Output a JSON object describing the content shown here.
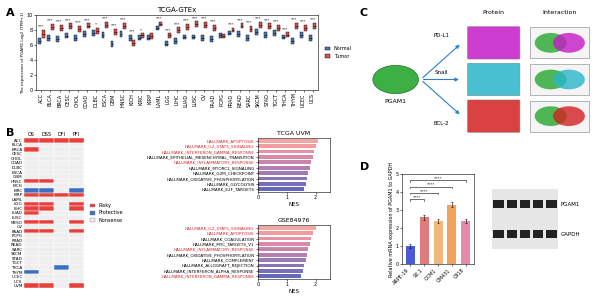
{
  "panel_labels": [
    "A",
    "B",
    "C",
    "D"
  ],
  "chart_data": [
    {
      "type": "box",
      "title": "TCGA-GTEx",
      "y_label": "The expression of PGAM1 Log2 (TPM+1)",
      "categories": [
        "ACC",
        "BLCA",
        "BRCA",
        "CESC",
        "CHOL",
        "COAD",
        "DLBC",
        "ESCA",
        "GBM",
        "HNSC",
        "KICH",
        "KIRC",
        "KIRP",
        "LAML",
        "LGG",
        "LIHC",
        "LUAD",
        "LUSC",
        "OV",
        "PAAD",
        "PCPG",
        "PRAD",
        "READ",
        "SARC",
        "SKCM",
        "STAD",
        "TGCT",
        "THCA",
        "THYM",
        "UCEC",
        "UCS"
      ],
      "series": [
        {
          "name": "Normal",
          "color": "#4a7ab5",
          "median": [
            6.5,
            7.0,
            6.8,
            7.2,
            6.9,
            7.5,
            7.6,
            7.4,
            6.2,
            7.5,
            7.0,
            7.0,
            7.0,
            8.3,
            6.2,
            6.6,
            7.1,
            7.1,
            7.0,
            6.8,
            7.3,
            7.6,
            7.5,
            7.0,
            7.8,
            7.4,
            7.6,
            7.1,
            6.5,
            7.3,
            7.0
          ],
          "q1": [
            6.1,
            6.6,
            6.4,
            6.9,
            6.6,
            7.1,
            7.2,
            7.0,
            5.8,
            7.1,
            6.6,
            6.7,
            6.7,
            8.0,
            5.9,
            6.2,
            6.8,
            6.8,
            6.6,
            6.4,
            7.0,
            7.3,
            7.1,
            6.6,
            7.4,
            7.0,
            7.2,
            6.8,
            6.1,
            6.9,
            6.6
          ],
          "q3": [
            6.9,
            7.4,
            7.2,
            7.6,
            7.3,
            7.9,
            8.0,
            7.8,
            6.6,
            7.9,
            7.4,
            7.3,
            7.3,
            8.6,
            6.5,
            7.0,
            7.4,
            7.4,
            7.4,
            7.2,
            7.6,
            7.9,
            7.9,
            7.4,
            8.2,
            7.8,
            8.0,
            7.4,
            6.9,
            7.7,
            7.4
          ]
        },
        {
          "name": "Tumor",
          "color": "#d9534f",
          "median": [
            7.5,
            8.4,
            8.3,
            8.5,
            8.2,
            8.6,
            7.9,
            8.7,
            7.8,
            8.6,
            6.3,
            7.3,
            7.2,
            8.8,
            7.3,
            8.0,
            8.4,
            8.8,
            8.7,
            8.3,
            7.2,
            8.0,
            8.6,
            8.2,
            8.7,
            8.5,
            8.3,
            7.4,
            8.6,
            8.3,
            8.6
          ],
          "q1": [
            7.0,
            8.0,
            7.9,
            8.1,
            7.8,
            8.3,
            7.5,
            8.3,
            7.4,
            8.2,
            5.9,
            7.0,
            6.8,
            8.5,
            7.0,
            7.6,
            8.0,
            8.4,
            8.3,
            7.9,
            6.9,
            7.7,
            8.3,
            7.8,
            8.3,
            8.1,
            7.9,
            7.1,
            8.2,
            7.9,
            8.2
          ],
          "q3": [
            8.0,
            8.8,
            8.7,
            8.9,
            8.6,
            8.9,
            8.3,
            9.1,
            8.2,
            9.0,
            6.7,
            7.6,
            7.6,
            9.1,
            7.6,
            8.4,
            8.8,
            9.2,
            9.1,
            8.7,
            7.5,
            8.3,
            8.9,
            8.6,
            9.1,
            8.9,
            8.7,
            7.7,
            9.0,
            8.7,
            9.0
          ]
        }
      ],
      "significance": [
        "***",
        "***",
        "***",
        "***",
        "***",
        "***",
        "*",
        "***",
        "***",
        "***",
        "***",
        "*",
        null,
        "***",
        "***",
        "***",
        "***",
        "***",
        "***",
        "***",
        null,
        "***",
        "***",
        "***",
        "***",
        "***",
        "***",
        "***",
        "***",
        "***",
        "***"
      ],
      "ylim": [
        0,
        10
      ],
      "yticks": [
        0,
        2,
        4,
        6,
        8,
        10
      ],
      "legend": "right"
    },
    {
      "type": "heatmap",
      "columns": [
        "OS",
        "DSS",
        "DFI",
        "PFI"
      ],
      "rows": [
        "ACC",
        "BLCA",
        "BRCA",
        "CESC",
        "CHOL",
        "COAD",
        "DLBC",
        "ESCA",
        "GBM",
        "HNSC",
        "KICH",
        "KIRC",
        "KIRP",
        "LAML",
        "LGG",
        "LIHC",
        "LUAD",
        "LUSC",
        "MESO",
        "OV",
        "PAAD",
        "PCPG",
        "PRAD",
        "READ",
        "SARC",
        "SKCM",
        "STAD",
        "TGCT",
        "THCA",
        "THYM",
        "UCEC",
        "UCS",
        "UVM"
      ],
      "cells": [
        [
          1,
          1,
          1,
          1
        ],
        [
          0,
          0,
          0,
          0
        ],
        [
          1,
          0,
          0,
          0
        ],
        [
          0,
          0,
          0,
          0
        ],
        [
          0,
          0,
          0,
          0
        ],
        [
          0,
          0,
          0,
          0
        ],
        [
          0,
          0,
          0,
          0
        ],
        [
          0,
          0,
          0,
          0
        ],
        [
          0,
          0,
          0,
          0
        ],
        [
          1,
          1,
          0,
          0
        ],
        [
          0,
          0,
          0,
          0
        ],
        [
          -1,
          -1,
          0,
          -1
        ],
        [
          1,
          1,
          1,
          1
        ],
        [
          0,
          0,
          0,
          0
        ],
        [
          1,
          1,
          0,
          1
        ],
        [
          1,
          1,
          0,
          1
        ],
        [
          1,
          0,
          0,
          0
        ],
        [
          0,
          0,
          0,
          0
        ],
        [
          1,
          1,
          0,
          1
        ],
        [
          0,
          0,
          0,
          0
        ],
        [
          1,
          1,
          0,
          1
        ],
        [
          0,
          0,
          0,
          0
        ],
        [
          0,
          0,
          0,
          0
        ],
        [
          0,
          0,
          0,
          0
        ],
        [
          0,
          0,
          0,
          0
        ],
        [
          0,
          0,
          0,
          0
        ],
        [
          0,
          0,
          0,
          0
        ],
        [
          0,
          0,
          0,
          0
        ],
        [
          0,
          0,
          -1,
          0
        ],
        [
          -1,
          0,
          0,
          0
        ],
        [
          0,
          0,
          0,
          0
        ],
        [
          0,
          0,
          0,
          0
        ],
        [
          1,
          1,
          0,
          1
        ]
      ],
      "legend_items": [
        {
          "value": 1,
          "name": "Risky",
          "color": "#e8413c"
        },
        {
          "value": -1,
          "name": "Protective",
          "color": "#3a6fc4"
        },
        {
          "value": 0,
          "name": "Nonsense",
          "color": "#eeeeee"
        }
      ]
    },
    {
      "type": "bar",
      "orientation": "horizontal",
      "title": "TCGA UVM",
      "x_label": "NES",
      "categories": [
        "HALLMARK_APOPTOSIS",
        "HALLMARK_IL2_STAT5_SIGNALING",
        "HALLMARK_INTERFERON_GAMMA_RESPONSE",
        "HALLMARK_EPITHELIAL_MESENCHYMAL_TRANSITION",
        "HALLMARK_INFLAMMATORY_RESPONSE",
        "HALLMARK_MTORC1_SIGNALING",
        "HALLMARK_G2M_CHECKPOINT",
        "HALLMARK_OXIDATIVE_PHOSPHORYLATION",
        "HALLMARK_GLYCOLYSIS",
        "HALLMARK_E2F_TARGETS"
      ],
      "values": [
        2.1,
        2.0,
        1.95,
        1.9,
        1.85,
        1.8,
        1.75,
        1.7,
        1.65,
        1.6
      ],
      "colors": [
        "#f4a6a0",
        "#f19c9f",
        "#e892a3",
        "#d98aa8",
        "#c985ae",
        "#b57fb2",
        "#a07ab5",
        "#8b74b8",
        "#776fba",
        "#6469bb"
      ],
      "label_colors": [
        "#d62728",
        "#d62728",
        "#d62728",
        "#000000",
        "#d62728",
        "#000000",
        "#000000",
        "#000000",
        "#000000",
        "#000000"
      ],
      "xlim": [
        0,
        2.5
      ],
      "xticks": [
        0,
        1,
        2
      ]
    },
    {
      "type": "bar",
      "orientation": "horizontal",
      "title": "GSE84976",
      "x_label": "NES",
      "categories": [
        "HALLMARK_IL2_STAT5_SIGNALING",
        "HALLMARK_APOPTOSIS",
        "HALLMARK_COAGULATION",
        "HALLMARK_MYC_TARGETS_V1",
        "HALLMARK_INFLAMMATORY_RESPONSE",
        "HALLMARK_OXIDATIVE_PHOSPHORYLATION",
        "HALLMARK_COMPLEMENT",
        "HALLMARK_ALLOGRAFT_REJECTION",
        "HALLMARK_INTERFERON_ALPHA_RESPONSE",
        "HALLMARK_INTERFERON_GAMMA_RESPONSE"
      ],
      "values": [
        2.0,
        1.9,
        1.85,
        1.8,
        1.75,
        1.7,
        1.65,
        1.6,
        1.55,
        1.5
      ],
      "colors": [
        "#f4a6a0",
        "#f19c9f",
        "#e892a3",
        "#d98aa8",
        "#c985ae",
        "#b57fb2",
        "#a07ab5",
        "#8b74b8",
        "#776fba",
        "#6469bb"
      ],
      "label_colors": [
        "#d62728",
        "#d62728",
        "#000000",
        "#000000",
        "#d62728",
        "#000000",
        "#000000",
        "#000000",
        "#000000",
        "#d62728"
      ],
      "xlim": [
        0,
        2.5
      ],
      "xticks": [
        0,
        1,
        2
      ]
    },
    {
      "type": "bar",
      "y_label": "Relative mRNA expression of PGAM1 to GAPDH",
      "categories": [
        "ARPE-19",
        "92.1",
        "OCM1",
        "OM431",
        "C918"
      ],
      "values": [
        1.0,
        2.6,
        2.4,
        3.3,
        2.4
      ],
      "errors": [
        0.1,
        0.15,
        0.12,
        0.15,
        0.1
      ],
      "colors": [
        "#4b5bd6",
        "#e07b7b",
        "#f0b87a",
        "#f1a35c",
        "#e58aaa"
      ],
      "comparisons": [
        {
          "pair": [
            "ARPE-19",
            "92.1"
          ],
          "label": "****"
        },
        {
          "pair": [
            "ARPE-19",
            "OCM1"
          ],
          "label": "****"
        },
        {
          "pair": [
            "ARPE-19",
            "OM431"
          ],
          "label": "****"
        },
        {
          "pair": [
            "ARPE-19",
            "C918"
          ],
          "label": "****"
        }
      ],
      "ylim": [
        0,
        5
      ],
      "yticks": [
        0,
        1,
        2,
        3,
        4,
        5
      ]
    }
  ],
  "diagram": {
    "source": {
      "label": "PGAM1",
      "color": "#3cb043"
    },
    "column_headers": [
      "Protein",
      "Interaction"
    ],
    "targets": [
      {
        "label": "PD-L1",
        "color": "#c51bc7"
      },
      {
        "label": "Snail",
        "color": "#29b5c9"
      },
      {
        "label": "BCL-2",
        "color": "#d42020"
      }
    ]
  },
  "western_blot": {
    "lanes": 5,
    "rows": [
      "PGAM1",
      "GAPDH"
    ]
  }
}
